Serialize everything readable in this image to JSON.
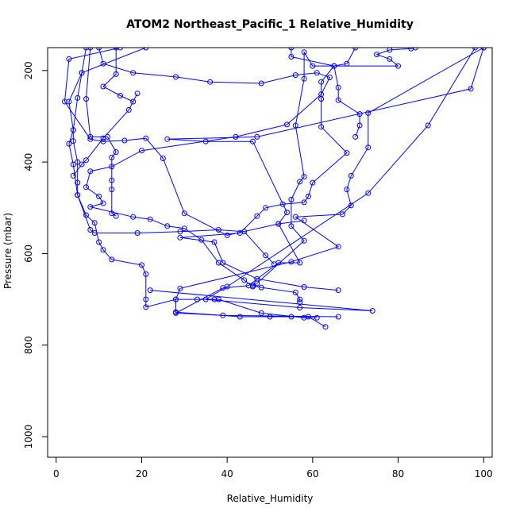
{
  "chart_data": {
    "type": "line",
    "title": "ATOM2 Northeast_Pacific_1 Relative_Humidity",
    "xlabel": "Relative_Humidity",
    "ylabel": "Pressure (mbar)",
    "xlim": [
      -2,
      102
    ],
    "ylim": [
      1045,
      150
    ],
    "y_reversed": true,
    "x_ticks": [
      0,
      20,
      40,
      60,
      80,
      100
    ],
    "y_ticks": [
      200,
      400,
      600,
      800,
      1000
    ],
    "grid": false,
    "legend": "none",
    "series_color": "#0000ff",
    "marker": "open-circle",
    "series": [
      {
        "points": [
          [
            7,
            150
          ],
          [
            6,
            205
          ],
          [
            3,
            268
          ],
          [
            4,
            330
          ],
          [
            3,
            360
          ],
          [
            4,
            405
          ],
          [
            5,
            472
          ],
          [
            7,
            516
          ],
          [
            9,
            533
          ],
          [
            10,
            575
          ],
          [
            11,
            592
          ],
          [
            13,
            613
          ],
          [
            20,
            625
          ],
          [
            21,
            645
          ],
          [
            21,
            700
          ],
          [
            21,
            717
          ],
          [
            28,
            700
          ],
          [
            28,
            728
          ],
          [
            43,
            738
          ],
          [
            50,
            738
          ],
          [
            55,
            738
          ],
          [
            59,
            738
          ],
          [
            63,
            760
          ]
        ]
      },
      {
        "points": [
          [
            100,
            150
          ],
          [
            97,
            240
          ],
          [
            47,
            345
          ],
          [
            26,
            350
          ],
          [
            35,
            355
          ],
          [
            46,
            355
          ],
          [
            54,
            510
          ],
          [
            52,
            535
          ],
          [
            57,
            620
          ],
          [
            52,
            620
          ],
          [
            45,
            670
          ],
          [
            39,
            675
          ],
          [
            28,
            730
          ],
          [
            39,
            735
          ],
          [
            66,
            738
          ]
        ]
      },
      {
        "points": [
          [
            100,
            150
          ],
          [
            73,
            293
          ],
          [
            73,
            368
          ],
          [
            69,
            430
          ],
          [
            68,
            460
          ],
          [
            69,
            495
          ],
          [
            67,
            514
          ],
          [
            56,
            520
          ],
          [
            66,
            585
          ],
          [
            55,
            618
          ],
          [
            29,
            676
          ],
          [
            28,
            700
          ],
          [
            33,
            700
          ],
          [
            37,
            700
          ],
          [
            38,
            700
          ],
          [
            48,
            730
          ],
          [
            58,
            740
          ],
          [
            61,
            740
          ]
        ]
      },
      {
        "points": [
          [
            98,
            150
          ],
          [
            87,
            320
          ],
          [
            73,
            468
          ],
          [
            40,
            672
          ],
          [
            35,
            700
          ],
          [
            57,
            718
          ],
          [
            74,
            725
          ],
          [
            22,
            680
          ]
        ]
      },
      {
        "points": [
          [
            84,
            150
          ],
          [
            83,
            152
          ],
          [
            78,
            155
          ],
          [
            75,
            165
          ],
          [
            78,
            175
          ],
          [
            80,
            190
          ],
          [
            60,
            190
          ],
          [
            58,
            160
          ],
          [
            58,
            218
          ],
          [
            56,
            320
          ],
          [
            58,
            432
          ],
          [
            57,
            443
          ],
          [
            55,
            482
          ],
          [
            55,
            540
          ],
          [
            58,
            572
          ],
          [
            47,
            665
          ],
          [
            46,
            670
          ],
          [
            48,
            674
          ],
          [
            56,
            685
          ],
          [
            57,
            700
          ],
          [
            57,
            706
          ]
        ]
      },
      {
        "points": [
          [
            70,
            150
          ],
          [
            68,
            185
          ],
          [
            65,
            190
          ],
          [
            62,
            225
          ],
          [
            62,
            262
          ],
          [
            62,
            323
          ],
          [
            68,
            380
          ],
          [
            60,
            445
          ],
          [
            59,
            475
          ],
          [
            58,
            488
          ],
          [
            53,
            492
          ],
          [
            49,
            500
          ],
          [
            47,
            518
          ],
          [
            43,
            555
          ],
          [
            29,
            565
          ],
          [
            37,
            575
          ],
          [
            39,
            620
          ],
          [
            47,
            655
          ],
          [
            58,
            673
          ],
          [
            66,
            680
          ]
        ]
      },
      {
        "points": [
          [
            55,
            150
          ],
          [
            55,
            170
          ],
          [
            65,
            190
          ],
          [
            66,
            237
          ],
          [
            66,
            265
          ],
          [
            71,
            295
          ],
          [
            71,
            320
          ],
          [
            70,
            345
          ]
        ]
      },
      {
        "points": [
          [
            15,
            150
          ],
          [
            3,
            175
          ],
          [
            2,
            268
          ],
          [
            8,
            350
          ],
          [
            11,
            355
          ],
          [
            16,
            353
          ],
          [
            21,
            348
          ],
          [
            25,
            392
          ],
          [
            30,
            512
          ],
          [
            40,
            560
          ],
          [
            52,
            535
          ],
          [
            58,
            528
          ]
        ]
      },
      {
        "points": [
          [
            21,
            150
          ],
          [
            6,
            205
          ],
          [
            5,
            260
          ],
          [
            4,
            330
          ],
          [
            4,
            354
          ],
          [
            5,
            400
          ],
          [
            5,
            445
          ],
          [
            5,
            472
          ],
          [
            8,
            548
          ],
          [
            9,
            555
          ],
          [
            19,
            555
          ],
          [
            29,
            552
          ],
          [
            38,
            548
          ],
          [
            44,
            552
          ],
          [
            49,
            604
          ],
          [
            51,
            623
          ]
        ]
      },
      {
        "points": [
          [
            8,
            150
          ],
          [
            7,
            262
          ],
          [
            8,
            345
          ],
          [
            12,
            345
          ],
          [
            14,
            378
          ],
          [
            13,
            390
          ],
          [
            13,
            440
          ],
          [
            13,
            460
          ],
          [
            13,
            512
          ],
          [
            14,
            518
          ]
        ]
      },
      {
        "points": [
          [
            14,
            150
          ],
          [
            14,
            208
          ],
          [
            11,
            235
          ],
          [
            15,
            255
          ],
          [
            18,
            268
          ],
          [
            19,
            250
          ],
          [
            17,
            286
          ],
          [
            11,
            348
          ],
          [
            7,
            396
          ],
          [
            6,
            405
          ],
          [
            4,
            430
          ]
        ]
      },
      {
        "points": [
          [
            10,
            150
          ],
          [
            11,
            185
          ],
          [
            18,
            205
          ],
          [
            28,
            214
          ],
          [
            36,
            225
          ],
          [
            48,
            228
          ],
          [
            56,
            210
          ],
          [
            61,
            205
          ],
          [
            64,
            215
          ],
          [
            62,
            252
          ],
          [
            54,
            318
          ],
          [
            42,
            345
          ],
          [
            20,
            375
          ],
          [
            13,
            410
          ],
          [
            8,
            420
          ],
          [
            7,
            455
          ],
          [
            10,
            475
          ],
          [
            11,
            490
          ],
          [
            8,
            498
          ],
          [
            18,
            520
          ],
          [
            22,
            525
          ],
          [
            26,
            540
          ],
          [
            30,
            545
          ],
          [
            34,
            570
          ],
          [
            38,
            620
          ],
          [
            44,
            658
          ],
          [
            46,
            672
          ]
        ]
      }
    ]
  }
}
